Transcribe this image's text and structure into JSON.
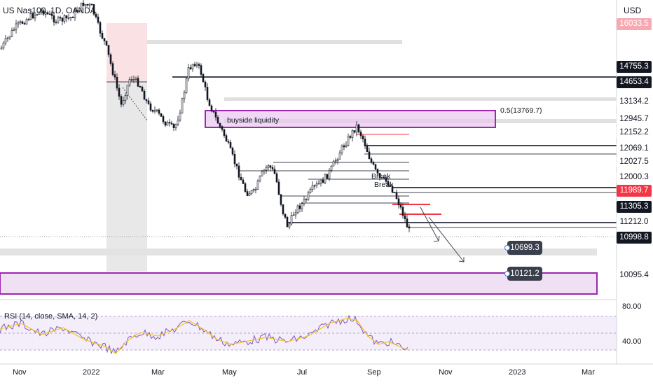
{
  "symbol": "US Nas100, 1D, OANDA",
  "currency": "USD",
  "price_labels": {
    "p_top": "16033.5",
    "p1": "14755.3",
    "p2": "14653.4",
    "p3": "13134.2",
    "p4": "12945.7",
    "p5": "12152.2",
    "p6": "12069.1",
    "p7": "12027.5",
    "p8": "12000.3",
    "p9": "11989.7",
    "p10": "11305.3",
    "p11": "11212.0",
    "p12": "10998.8",
    "p13": "10095.4"
  },
  "annotations": {
    "buyside": "buyside liquidity",
    "fib": "0.5(13769.7)",
    "break1": "Break",
    "break2": "Break",
    "target1": "10699.3",
    "target2": "10121.2"
  },
  "rsi": {
    "label": "RSI (14, close, SMA, 14, 2)",
    "upper": "80.00",
    "lower": "40.00"
  },
  "time_axis": [
    "Nov",
    "2022",
    "Mar",
    "May",
    "Jul",
    "Sep",
    "Nov",
    "2023",
    "Mar"
  ],
  "colors": {
    "up": "#131722",
    "purple": "#9c27b0",
    "red": "#f23645",
    "rsi_line": "#7e57c2",
    "rsi_ma": "#f5c518"
  }
}
